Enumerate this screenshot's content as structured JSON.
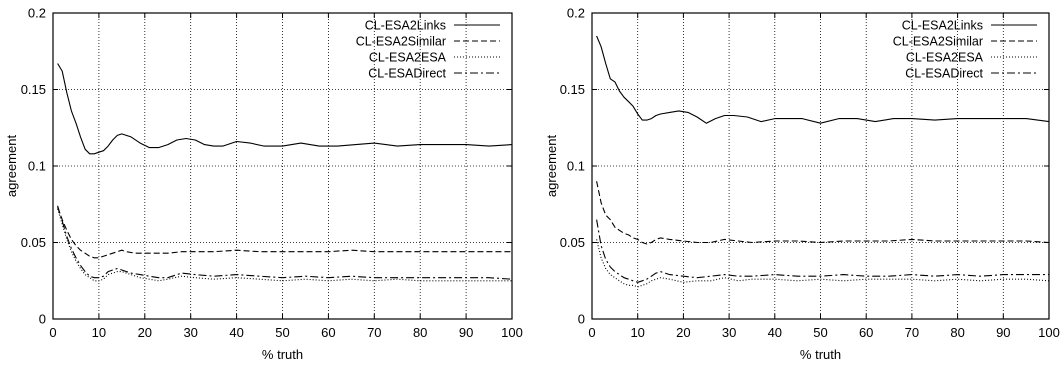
{
  "chart_data": [
    {
      "type": "line",
      "title": "",
      "xlabel": "% truth",
      "ylabel": "agreement",
      "xlim": [
        0,
        100
      ],
      "ylim": [
        0,
        0.2
      ],
      "xticks": [
        "0",
        "10",
        "20",
        "30",
        "40",
        "50",
        "60",
        "70",
        "80",
        "90",
        "100"
      ],
      "yticks": [
        "0",
        "0.05",
        "0.1",
        "0.15",
        "0.2"
      ],
      "grid": true,
      "legend_position": "top-right",
      "series": [
        {
          "name": "CL-ESA2Links",
          "style": "solid",
          "color": "#000000",
          "x": [
            1,
            2,
            3,
            4,
            5,
            6,
            7,
            8,
            9,
            10,
            11,
            12,
            13,
            14,
            15,
            17,
            19,
            21,
            23,
            25,
            27,
            29,
            31,
            33,
            35,
            37,
            40,
            43,
            46,
            50,
            54,
            58,
            62,
            66,
            70,
            75,
            80,
            85,
            90,
            95,
            100
          ],
          "y": [
            0.167,
            0.162,
            0.148,
            0.136,
            0.128,
            0.119,
            0.111,
            0.108,
            0.108,
            0.109,
            0.11,
            0.113,
            0.117,
            0.12,
            0.121,
            0.119,
            0.115,
            0.112,
            0.112,
            0.114,
            0.117,
            0.118,
            0.117,
            0.114,
            0.113,
            0.113,
            0.116,
            0.115,
            0.113,
            0.113,
            0.115,
            0.113,
            0.113,
            0.114,
            0.115,
            0.113,
            0.114,
            0.114,
            0.114,
            0.113,
            0.114
          ]
        },
        {
          "name": "CL-ESA2Similar",
          "style": "dashed",
          "color": "#000000",
          "x": [
            1,
            2,
            3,
            4,
            5,
            6,
            7,
            8,
            9,
            10,
            12,
            14,
            15,
            16,
            18,
            20,
            22,
            25,
            28,
            31,
            35,
            40,
            45,
            50,
            55,
            60,
            65,
            70,
            75,
            80,
            85,
            90,
            95,
            100
          ],
          "y": [
            0.073,
            0.065,
            0.058,
            0.052,
            0.048,
            0.045,
            0.043,
            0.041,
            0.04,
            0.04,
            0.042,
            0.044,
            0.045,
            0.044,
            0.043,
            0.043,
            0.043,
            0.043,
            0.044,
            0.044,
            0.044,
            0.045,
            0.044,
            0.044,
            0.044,
            0.044,
            0.045,
            0.044,
            0.044,
            0.044,
            0.044,
            0.044,
            0.044,
            0.044
          ]
        },
        {
          "name": "CL-ESA2ESA",
          "style": "dotted",
          "color": "#000000",
          "x": [
            1,
            2,
            3,
            4,
            5,
            6,
            7,
            8,
            9,
            10,
            11,
            12,
            13,
            14,
            15,
            17,
            19,
            21,
            23,
            25,
            28,
            31,
            35,
            40,
            45,
            50,
            55,
            60,
            65,
            70,
            75,
            80,
            85,
            90,
            95,
            100
          ],
          "y": [
            0.072,
            0.062,
            0.052,
            0.044,
            0.038,
            0.033,
            0.029,
            0.027,
            0.025,
            0.025,
            0.026,
            0.029,
            0.03,
            0.031,
            0.031,
            0.029,
            0.027,
            0.026,
            0.025,
            0.026,
            0.028,
            0.027,
            0.026,
            0.027,
            0.026,
            0.025,
            0.026,
            0.025,
            0.026,
            0.025,
            0.026,
            0.025,
            0.025,
            0.025,
            0.025,
            0.025
          ]
        },
        {
          "name": "CL-ESADirect",
          "style": "dashdot",
          "color": "#000000",
          "x": [
            1,
            2,
            3,
            4,
            5,
            6,
            7,
            8,
            9,
            10,
            11,
            12,
            13,
            14,
            15,
            17,
            19,
            21,
            23,
            25,
            28,
            31,
            35,
            40,
            45,
            50,
            55,
            60,
            65,
            70,
            75,
            80,
            85,
            90,
            95,
            100
          ],
          "y": [
            0.074,
            0.064,
            0.054,
            0.046,
            0.04,
            0.035,
            0.031,
            0.028,
            0.027,
            0.027,
            0.028,
            0.031,
            0.032,
            0.033,
            0.032,
            0.03,
            0.029,
            0.028,
            0.027,
            0.027,
            0.03,
            0.029,
            0.028,
            0.029,
            0.028,
            0.027,
            0.028,
            0.027,
            0.028,
            0.027,
            0.027,
            0.027,
            0.027,
            0.027,
            0.027,
            0.026
          ]
        }
      ]
    },
    {
      "type": "line",
      "title": "",
      "xlabel": "% truth",
      "ylabel": "agreement",
      "xlim": [
        0,
        100
      ],
      "ylim": [
        0,
        0.2
      ],
      "xticks": [
        "0",
        "10",
        "20",
        "30",
        "40",
        "50",
        "60",
        "70",
        "80",
        "90",
        "100"
      ],
      "yticks": [
        "0",
        "0.05",
        "0.1",
        "0.15",
        "0.2"
      ],
      "grid": true,
      "legend_position": "top-right",
      "series": [
        {
          "name": "CL-ESA2Links",
          "style": "solid",
          "color": "#000000",
          "x": [
            1,
            2,
            3,
            4,
            5,
            6,
            7,
            8,
            9,
            10,
            11,
            12,
            13,
            14,
            15,
            17,
            19,
            21,
            23,
            25,
            27,
            29,
            31,
            34,
            37,
            40,
            43,
            46,
            50,
            54,
            58,
            62,
            66,
            70,
            75,
            80,
            85,
            90,
            95,
            100
          ],
          "y": [
            0.185,
            0.178,
            0.167,
            0.157,
            0.155,
            0.149,
            0.145,
            0.142,
            0.139,
            0.134,
            0.13,
            0.13,
            0.131,
            0.133,
            0.134,
            0.135,
            0.136,
            0.135,
            0.132,
            0.128,
            0.131,
            0.133,
            0.133,
            0.132,
            0.129,
            0.131,
            0.131,
            0.131,
            0.128,
            0.131,
            0.131,
            0.129,
            0.131,
            0.131,
            0.13,
            0.131,
            0.131,
            0.131,
            0.131,
            0.129
          ]
        },
        {
          "name": "CL-ESA2Similar",
          "style": "dashed",
          "color": "#000000",
          "x": [
            1,
            2,
            3,
            4,
            5,
            6,
            7,
            8,
            9,
            10,
            11,
            12,
            13,
            14,
            15,
            17,
            20,
            23,
            26,
            29,
            32,
            35,
            40,
            45,
            50,
            55,
            60,
            65,
            70,
            75,
            80,
            85,
            90,
            95,
            100
          ],
          "y": [
            0.09,
            0.076,
            0.068,
            0.065,
            0.06,
            0.058,
            0.056,
            0.055,
            0.053,
            0.052,
            0.05,
            0.049,
            0.05,
            0.052,
            0.053,
            0.052,
            0.051,
            0.05,
            0.05,
            0.052,
            0.051,
            0.05,
            0.051,
            0.051,
            0.05,
            0.051,
            0.051,
            0.051,
            0.052,
            0.051,
            0.051,
            0.051,
            0.051,
            0.051,
            0.05
          ]
        },
        {
          "name": "CL-ESA2ESA",
          "style": "dotted",
          "color": "#000000",
          "x": [
            1,
            2,
            3,
            4,
            5,
            6,
            7,
            8,
            9,
            10,
            11,
            12,
            13,
            14,
            15,
            17,
            20,
            23,
            26,
            29,
            32,
            35,
            40,
            45,
            50,
            55,
            60,
            65,
            70,
            75,
            80,
            85,
            90,
            95,
            100
          ],
          "y": [
            0.052,
            0.04,
            0.033,
            0.029,
            0.027,
            0.025,
            0.023,
            0.022,
            0.022,
            0.021,
            0.022,
            0.023,
            0.025,
            0.026,
            0.027,
            0.026,
            0.024,
            0.025,
            0.025,
            0.027,
            0.025,
            0.026,
            0.026,
            0.025,
            0.026,
            0.025,
            0.026,
            0.026,
            0.026,
            0.025,
            0.026,
            0.025,
            0.026,
            0.026,
            0.025
          ]
        },
        {
          "name": "CL-ESADirect",
          "style": "dashdot",
          "color": "#000000",
          "x": [
            1,
            2,
            3,
            4,
            5,
            6,
            7,
            8,
            9,
            10,
            11,
            12,
            13,
            14,
            15,
            17,
            20,
            23,
            26,
            29,
            32,
            35,
            40,
            45,
            50,
            55,
            60,
            65,
            70,
            75,
            80,
            85,
            90,
            95,
            100
          ],
          "y": [
            0.065,
            0.048,
            0.039,
            0.034,
            0.031,
            0.029,
            0.027,
            0.026,
            0.025,
            0.024,
            0.025,
            0.026,
            0.028,
            0.03,
            0.031,
            0.029,
            0.028,
            0.027,
            0.028,
            0.029,
            0.028,
            0.028,
            0.029,
            0.028,
            0.028,
            0.029,
            0.028,
            0.028,
            0.029,
            0.028,
            0.029,
            0.028,
            0.029,
            0.029,
            0.029
          ]
        }
      ]
    }
  ]
}
